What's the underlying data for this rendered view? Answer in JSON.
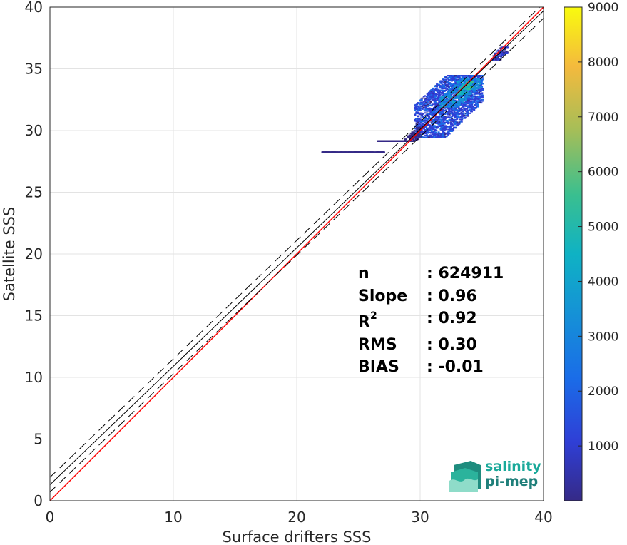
{
  "chart_data": {
    "type": "heatmap",
    "title": "",
    "xlabel": "Surface drifters SSS",
    "ylabel": "Satellite SSS",
    "xlim": [
      0,
      40
    ],
    "ylim": [
      0,
      40
    ],
    "xticks": [
      "0",
      "10",
      "20",
      "30",
      "40"
    ],
    "yticks": [
      "0",
      "5",
      "10",
      "15",
      "20",
      "25",
      "30",
      "35",
      "40"
    ],
    "grid": true,
    "colorbar": {
      "range": [
        0,
        9000
      ],
      "ticks": [
        "1000",
        "2000",
        "3000",
        "4000",
        "5000",
        "6000",
        "7000",
        "8000",
        "9000"
      ],
      "colormap": "parula"
    },
    "lines": [
      {
        "name": "identity",
        "slope": 1.0,
        "intercept": 0.0,
        "color": "#ff0000",
        "style": "solid"
      },
      {
        "name": "regression",
        "slope": 0.96,
        "intercept": 1.3,
        "color": "#000000",
        "style": "solid"
      },
      {
        "name": "regression-upper",
        "slope": 0.96,
        "intercept": 1.9,
        "color": "#000000",
        "style": "dashed"
      },
      {
        "name": "regression-lower",
        "slope": 0.96,
        "intercept": 0.7,
        "color": "#000000",
        "style": "dashed"
      }
    ],
    "density_blobs": [
      {
        "x": [
          29.5,
          35.0
        ],
        "y": [
          29.5,
          34.5
        ],
        "level": 0.25
      },
      {
        "x": [
          31.5,
          34.8
        ],
        "y": [
          32.0,
          34.2
        ],
        "level": 0.45
      },
      {
        "x": [
          33.0,
          34.2
        ],
        "y": [
          33.0,
          34.0
        ],
        "level": 0.65
      },
      {
        "x": [
          35.8,
          37.0
        ],
        "y": [
          35.8,
          36.8
        ],
        "level": 0.2
      },
      {
        "x": [
          26.5,
          30.0
        ],
        "y": [
          29.2,
          30.3
        ],
        "level": 0.05
      },
      {
        "x": [
          22.0,
          27.0
        ],
        "y": [
          28.3,
          29.3
        ],
        "level": 0.03
      }
    ],
    "stats": [
      {
        "key": "n",
        "sup": "",
        "value": ": 624911"
      },
      {
        "key": "Slope",
        "sup": "",
        "value": ": 0.96"
      },
      {
        "key": "R",
        "sup": "2",
        "value": ": 0.92"
      },
      {
        "key": "RMS",
        "sup": "",
        "value": ": 0.30"
      },
      {
        "key": "BIAS",
        "sup": "",
        "value": ": -0.01"
      }
    ]
  },
  "logo": {
    "line1": "salinity",
    "line2": "pi-mep"
  }
}
